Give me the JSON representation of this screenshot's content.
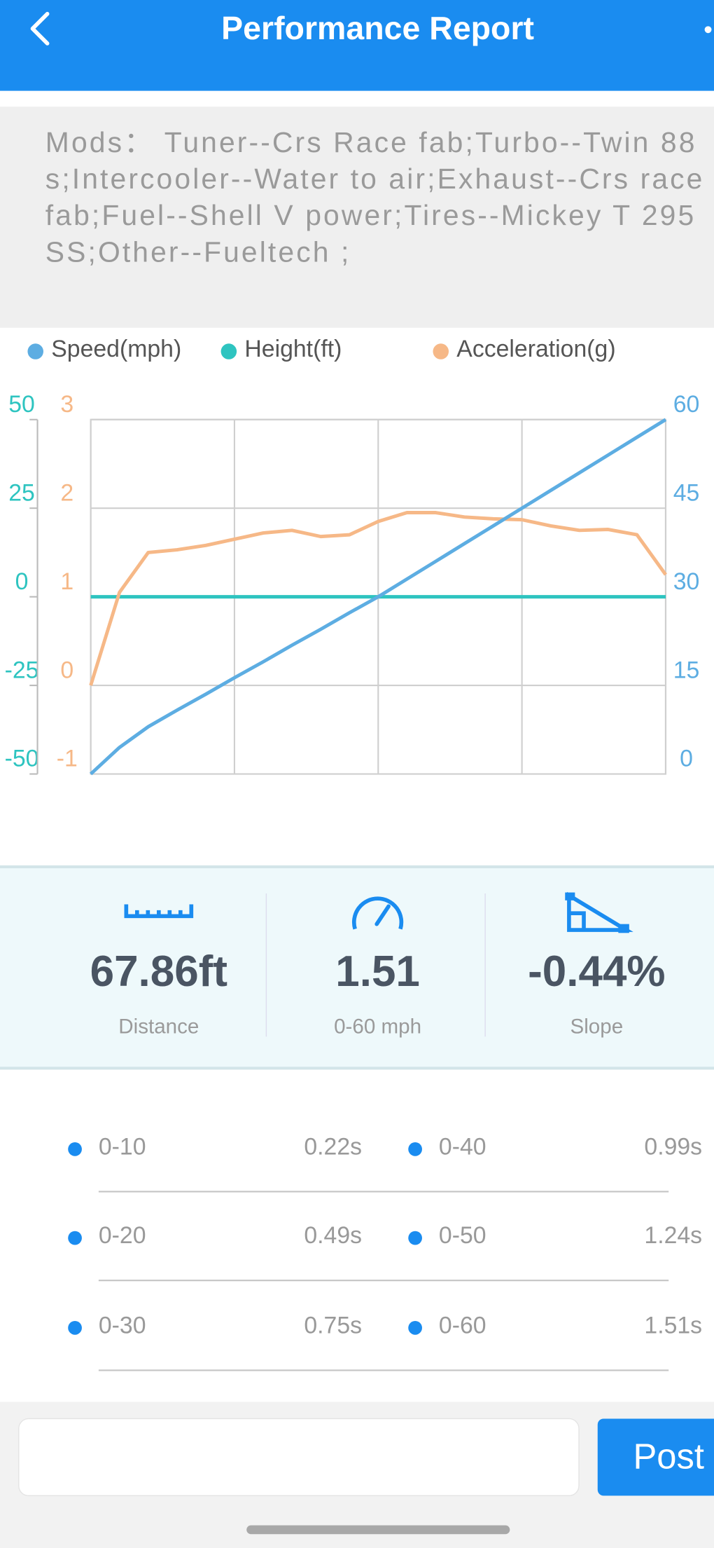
{
  "header": {
    "title": "Performance Report"
  },
  "mods": {
    "text": "Mods：  Tuner--Crs Race fab;Turbo--Twin 88s;Intercooler--Water to air;Exhaust--Crs race fab;Fuel--Shell V power;Tires--Mickey T 295 SS;Other--Fueltech ;"
  },
  "chart_data": {
    "type": "line",
    "grid": true,
    "series": [
      {
        "name": "Speed(mph)",
        "color": "#5dade2",
        "axis_side": "right",
        "ylim": [
          0,
          60
        ],
        "yticks": [
          0,
          15,
          30,
          45,
          60
        ],
        "values": [
          0,
          4.5,
          8,
          10.8,
          13.5,
          16.3,
          19,
          21.8,
          24.5,
          27.3,
          30,
          33,
          36,
          39,
          42,
          45,
          48,
          51,
          54,
          57,
          60
        ]
      },
      {
        "name": "Height(ft)",
        "color": "#2ec4c0",
        "axis_side": "left-outer",
        "ylim": [
          -50,
          50
        ],
        "yticks": [
          -50,
          -25,
          0,
          25,
          50
        ],
        "values": [
          0,
          0,
          0,
          0,
          0,
          0,
          0,
          0,
          0,
          0,
          0,
          0,
          0,
          0,
          0,
          0,
          0,
          0,
          0,
          0,
          0
        ]
      },
      {
        "name": "Acceleration(g)",
        "color": "#f6b887",
        "axis_side": "left-inner",
        "ylim": [
          -1,
          3
        ],
        "yticks": [
          -1,
          0,
          1,
          2,
          3
        ],
        "values": [
          0,
          1.05,
          1.5,
          1.53,
          1.58,
          1.65,
          1.72,
          1.75,
          1.68,
          1.7,
          1.85,
          1.95,
          1.95,
          1.9,
          1.88,
          1.87,
          1.8,
          1.75,
          1.76,
          1.7,
          1.25
        ]
      }
    ]
  },
  "stats": [
    {
      "value": "67.86ft",
      "label": "Distance"
    },
    {
      "value": "1.51",
      "label": "0-60 mph"
    },
    {
      "value": "-0.44%",
      "label": "Slope"
    }
  ],
  "splits": [
    {
      "label": "0-10",
      "time": "0.22s"
    },
    {
      "label": "0-40",
      "time": "0.99s"
    },
    {
      "label": "0-20",
      "time": "0.49s"
    },
    {
      "label": "0-50",
      "time": "1.24s"
    },
    {
      "label": "0-30",
      "time": "0.75s"
    },
    {
      "label": "0-60",
      "time": "1.51s"
    }
  ],
  "composer": {
    "button": "Post"
  }
}
